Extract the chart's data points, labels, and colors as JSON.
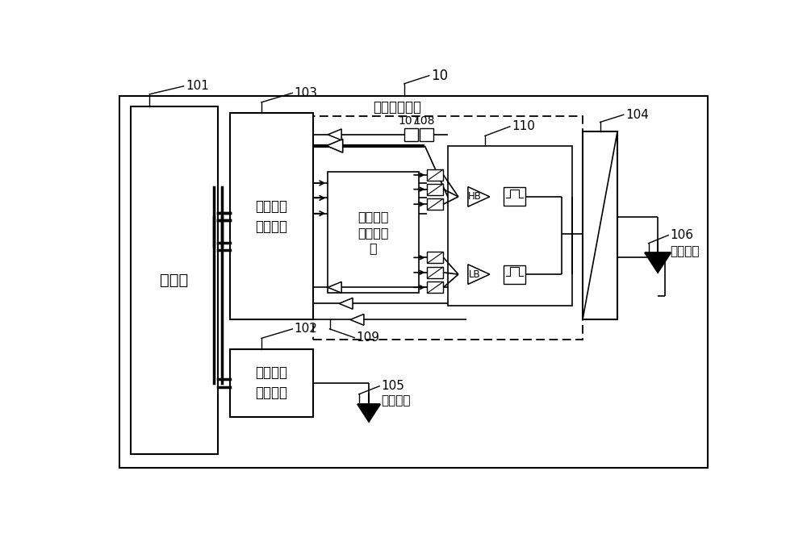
{
  "bg_color": "#ffffff",
  "label_10": "10",
  "label_101": "101",
  "label_102": "102",
  "label_103": "103",
  "label_104": "104",
  "label_105": "105",
  "label_106": "106",
  "label_107": "107",
  "label_108": "108",
  "label_109": "109",
  "label_110": "110",
  "text_processor": "处理器",
  "text_rf1": "第一射频\n通信模块",
  "text_rf2": "第二射频\n通信模块",
  "text_pa": "多模多频\n功率放大\n器",
  "text_frontend": "第一前端模块",
  "text_ant1": "第一天线",
  "text_ant2": "第二天线",
  "text_HB": "HB",
  "text_LB": "LB"
}
